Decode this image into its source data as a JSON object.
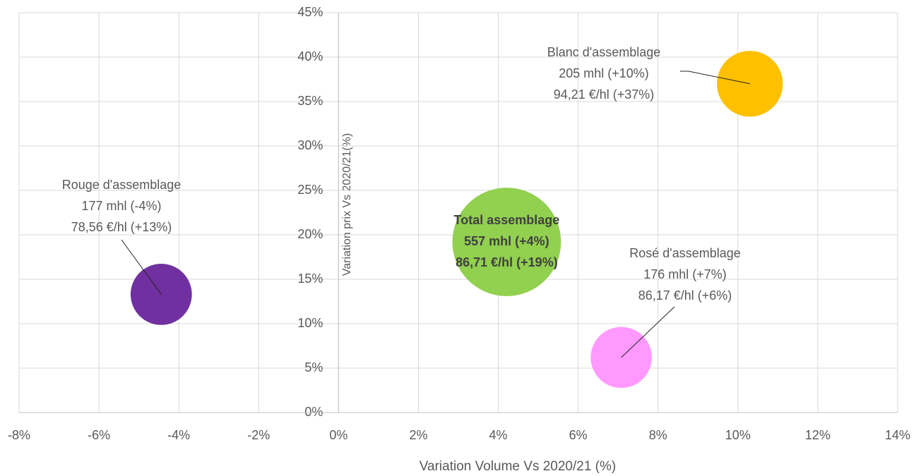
{
  "chart_data": {
    "type": "bubble",
    "x_label": "Variation Volume Vs 2020/21 (%)",
    "y_label": "Variation prix Vs 2020/21(%)",
    "xlim": [
      -8,
      14
    ],
    "ylim": [
      0,
      45
    ],
    "xticks": [
      {
        "value": -8,
        "label": "-8%"
      },
      {
        "value": -6,
        "label": "-6%"
      },
      {
        "value": -4,
        "label": "-4%"
      },
      {
        "value": -2,
        "label": "-2%"
      },
      {
        "value": 0,
        "label": "0%"
      },
      {
        "value": 2,
        "label": "2%"
      },
      {
        "value": 4,
        "label": "4%"
      },
      {
        "value": 6,
        "label": "6%"
      },
      {
        "value": 8,
        "label": "8%"
      },
      {
        "value": 10,
        "label": "10%"
      },
      {
        "value": 12,
        "label": "12%"
      },
      {
        "value": 14,
        "label": "14%"
      }
    ],
    "yticks": [
      {
        "value": 0,
        "label": "0%"
      },
      {
        "value": 5,
        "label": "5%"
      },
      {
        "value": 10,
        "label": "10%"
      },
      {
        "value": 15,
        "label": "15%"
      },
      {
        "value": 20,
        "label": "20%"
      },
      {
        "value": 25,
        "label": "25%"
      },
      {
        "value": 30,
        "label": "30%"
      },
      {
        "value": 35,
        "label": "35%"
      },
      {
        "value": 40,
        "label": "40%"
      },
      {
        "value": 45,
        "label": "45%"
      }
    ],
    "grid": true,
    "series": [
      {
        "name": "Rouge d'assemblage",
        "color": "#7030a0",
        "x": [
          -4.44
        ],
        "values": [
          13.3
        ],
        "sizes": [
          177
        ],
        "value_labels": [
          "177 mhl (-4%)",
          "78,56 €/hl (+13%)"
        ]
      },
      {
        "name": "Blanc d'assemblage",
        "color": "#ffc000",
        "x": [
          10.3
        ],
        "values": [
          37.0
        ],
        "sizes": [
          205
        ],
        "value_labels": [
          "205 mhl (+10%)",
          "94,21 €/hl (+37%)"
        ]
      },
      {
        "name": "Rosé d'assemblage",
        "color": "#ff99ff",
        "x": [
          7.08
        ],
        "values": [
          6.2
        ],
        "sizes": [
          176
        ],
        "value_labels": [
          "176 mhl (+7%)",
          "86,17 €/hl (+6%)"
        ]
      },
      {
        "name": "Total assemblage",
        "color": "#92d050",
        "x": [
          4.21
        ],
        "values": [
          19.2
        ],
        "sizes": [
          557
        ],
        "value_labels": [
          "557 mhl (+4%)",
          "86,71 €/hl (+19%)"
        ]
      }
    ]
  }
}
